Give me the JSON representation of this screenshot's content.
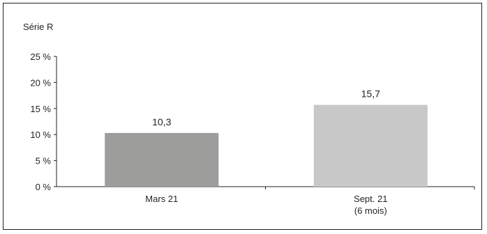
{
  "chart_data": {
    "type": "bar",
    "series_label": "Série R",
    "categories": [
      [
        "Mars 21"
      ],
      [
        "Sept. 21",
        "(6 mois)"
      ]
    ],
    "values": [
      10.3,
      15.7
    ],
    "value_labels": [
      "10,3",
      "15,7"
    ],
    "colors": [
      "#9d9d9c",
      "#c8c8c8"
    ],
    "ylim": [
      0,
      25
    ],
    "yticks": [
      0,
      5,
      10,
      15,
      20,
      25
    ],
    "ytick_labels": [
      "0 %",
      "5 %",
      "10 %",
      "15 %",
      "20 %",
      "25 %"
    ],
    "grid": false,
    "legend": "none"
  }
}
